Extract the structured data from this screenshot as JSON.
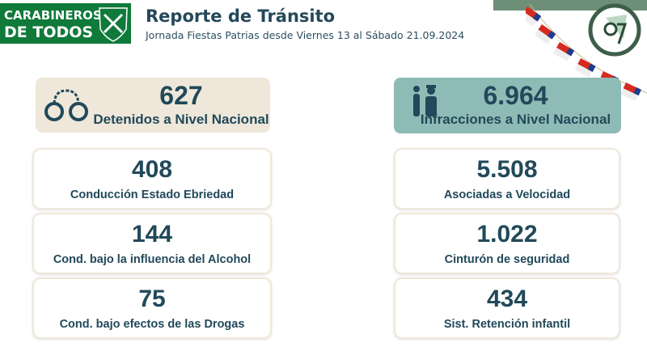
{
  "brand": {
    "line1": "CARABINEROS",
    "line2": "DE TODOS",
    "shield_text": "CARABINEROS DE CHILE"
  },
  "header": {
    "title": "Reporte de Tránsito",
    "subtitle": "Jornada Fiestas Patrias desde Viernes 13 al Sábado 21.09.2024"
  },
  "emblem": {
    "top_text": "CARABINEROS DE CHILE",
    "bottom_text": "CAMINO AL CENTENARIO",
    "number": "97"
  },
  "colors": {
    "brand_green": "#0f7a3a",
    "text": "#21495a",
    "left_summary_bg": "#efe8da",
    "right_summary_bg": "#8fbbb7"
  },
  "left": {
    "summary": {
      "value": "627",
      "label": "Detenidos a Nivel Nacional",
      "icon": "handcuffs-icon"
    },
    "cards": [
      {
        "value": "408",
        "label": "Conducción Estado Ebriedad"
      },
      {
        "value": "144",
        "label": "Cond. bajo la influencia del Alcohol"
      },
      {
        "value": "75",
        "label": "Cond. bajo efectos de las Drogas"
      }
    ]
  },
  "right": {
    "summary": {
      "value": "6.964",
      "label": "Infracciones a Nivel Nacional",
      "icon": "police-officer-icon"
    },
    "cards": [
      {
        "value": "5.508",
        "label": "Asociadas a Velocidad"
      },
      {
        "value": "1.022",
        "label": "Cinturón de seguridad"
      },
      {
        "value": "434",
        "label": "Sist. Retención infantil"
      }
    ]
  }
}
